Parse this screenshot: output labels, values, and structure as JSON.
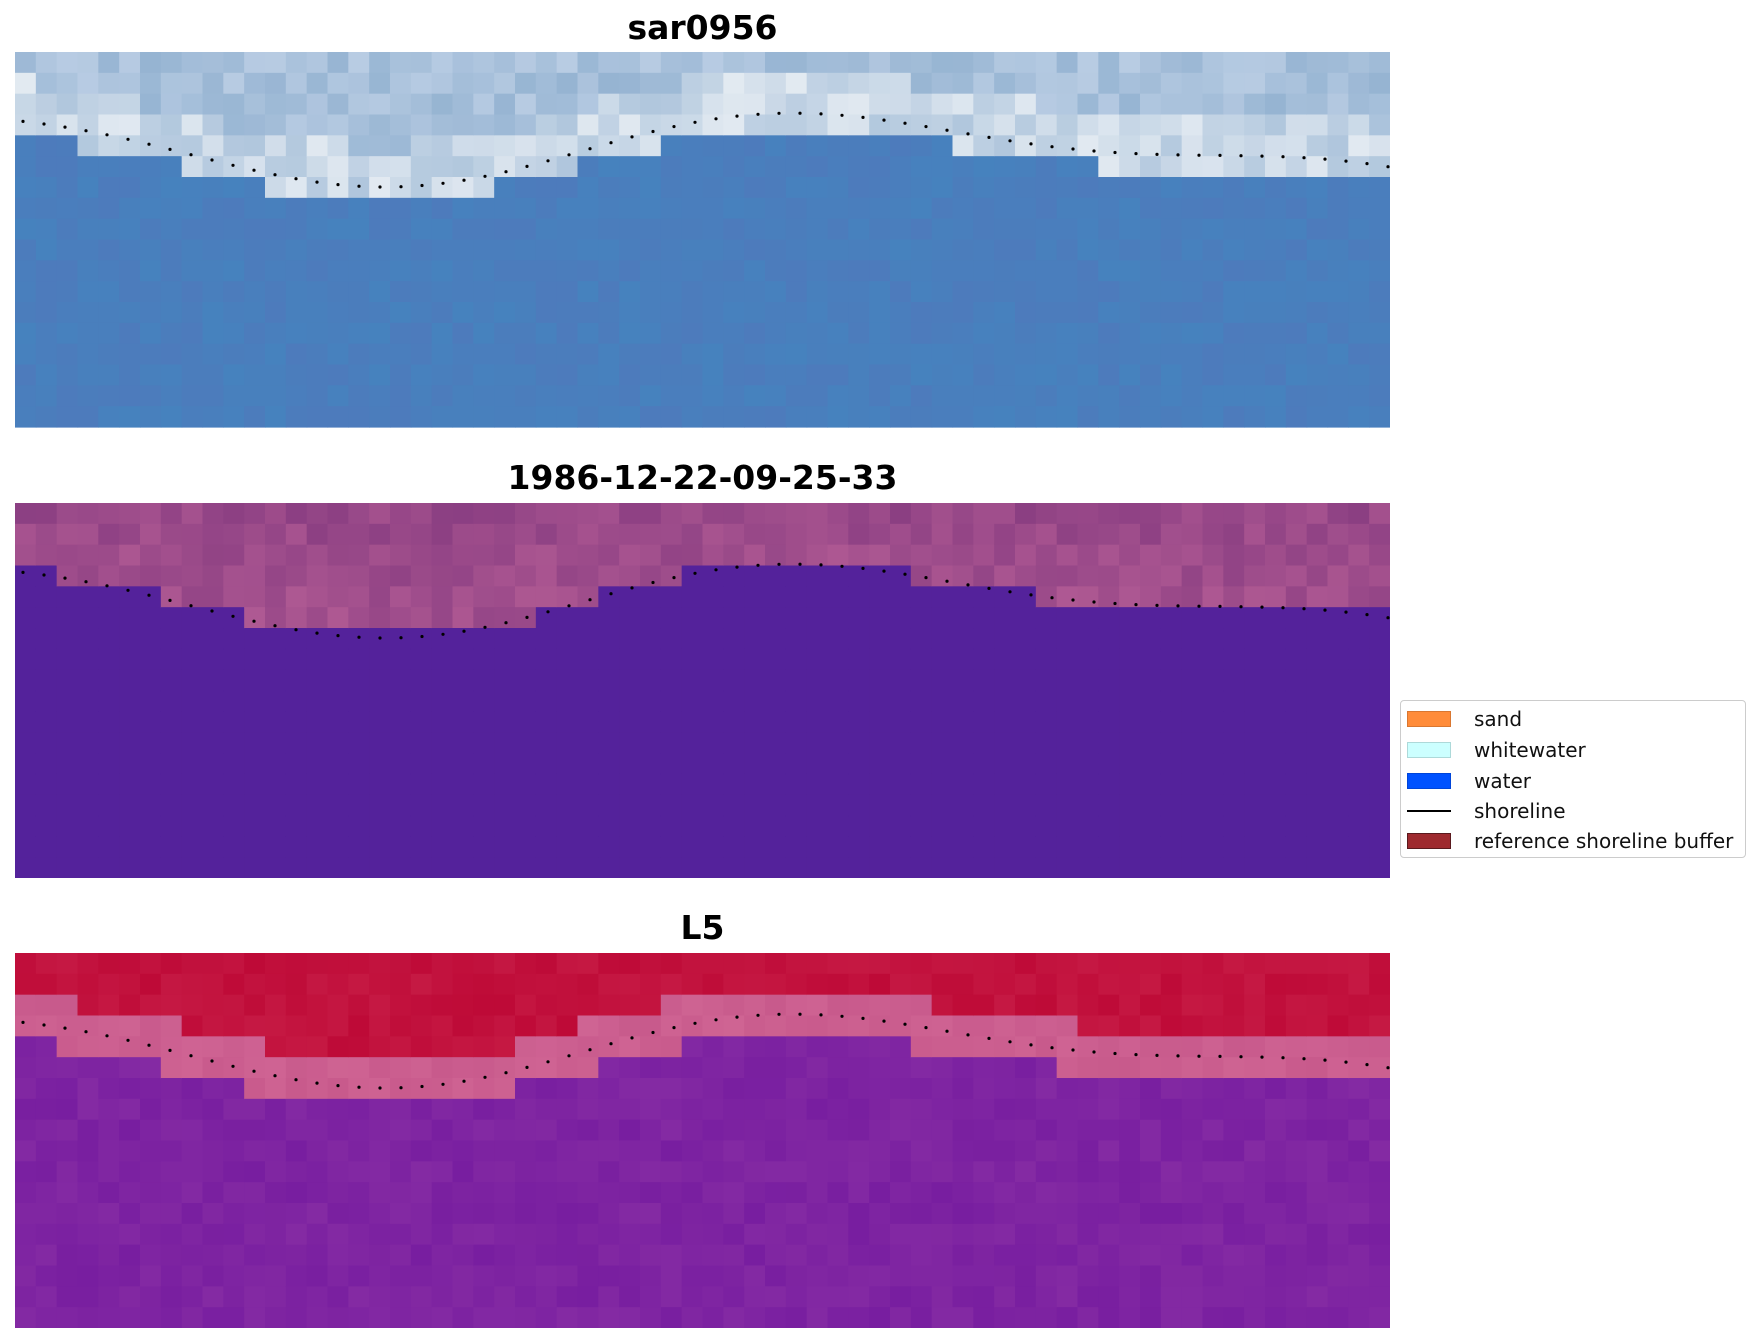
{
  "panels": [
    {
      "id": "rgb",
      "title": "sar0956",
      "palette": "sea"
    },
    {
      "id": "class",
      "title": "1986-12-22-09-25-33",
      "palette": "classified"
    },
    {
      "id": "ndwi",
      "title": "L5",
      "palette": "index"
    }
  ],
  "legend": {
    "items": [
      {
        "label": "sand",
        "color": "#ff8c3a",
        "kind": "patch"
      },
      {
        "label": "whitewater",
        "color": "#ccffff",
        "kind": "patch"
      },
      {
        "label": "water",
        "color": "#0052ff",
        "kind": "patch"
      },
      {
        "label": "shoreline",
        "color": "#000000",
        "kind": "line"
      },
      {
        "label": "reference shoreline buffer",
        "color": "#9e2a2f",
        "kind": "patch"
      }
    ]
  },
  "colors": {
    "water_class": "#54229b",
    "buffer_class": "#8a3e82",
    "index_high": "#be0a35",
    "index_low": "#7a1ea0"
  }
}
